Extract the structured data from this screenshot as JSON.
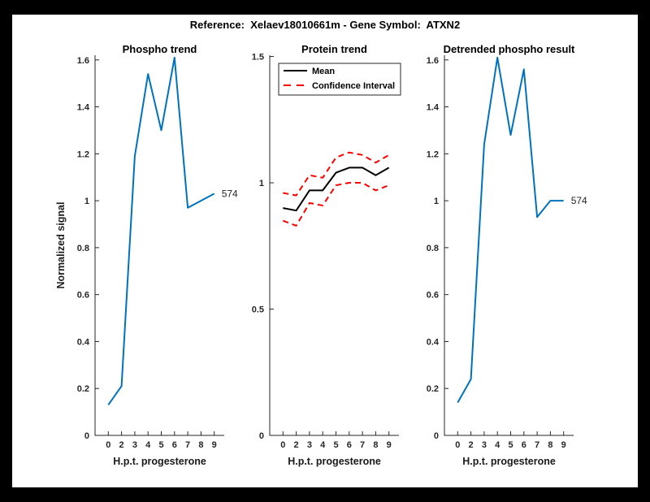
{
  "window": {
    "background": "#000000",
    "canvas_background": "#ffffff"
  },
  "figure_title": "Reference:  Xelaev18010661m - Gene Symbol:  ATXN2",
  "axis_style": {
    "axis_color": "#262626",
    "tick_label_color": "#262626",
    "tick_direction": "in"
  },
  "chart_data": [
    {
      "type": "line",
      "title": "Phospho trend",
      "xlabel": "H.p.t. progesterone",
      "ylabel": "Normalized signal",
      "x": [
        0,
        2,
        3,
        4,
        5,
        6,
        7,
        8,
        9
      ],
      "x_tick_labels": [
        "0",
        "2",
        "3",
        "4",
        "5",
        "6",
        "7",
        "8",
        "9"
      ],
      "x_spacing": "equal",
      "ylim": [
        0,
        1.62
      ],
      "yticks": [
        0,
        0.2,
        0.4,
        0.6,
        0.8,
        1,
        1.2,
        1.4,
        1.6
      ],
      "grid": false,
      "series": [
        {
          "name": "phospho-trend",
          "color": "#0072BD",
          "style": "solid",
          "width": 2,
          "values": [
            0.13,
            0.21,
            1.19,
            1.54,
            1.3,
            1.61,
            0.97,
            1.0,
            1.03
          ]
        }
      ],
      "end_label": {
        "text": "574",
        "color": "#262626"
      }
    },
    {
      "type": "line",
      "title": "Protein trend",
      "xlabel": "H.p.t. progesterone",
      "ylabel": "",
      "x": [
        0,
        2,
        3,
        4,
        5,
        6,
        7,
        8,
        9
      ],
      "x_tick_labels": [
        "0",
        "2",
        "3",
        "4",
        "5",
        "6",
        "7",
        "8",
        "9"
      ],
      "x_spacing": "equal",
      "ylim": [
        0,
        1.505
      ],
      "yticks": [
        0,
        0.5,
        1,
        1.5
      ],
      "grid": false,
      "series": [
        {
          "name": "mean",
          "color": "#000000",
          "style": "solid",
          "width": 2,
          "values": [
            0.9,
            0.89,
            0.97,
            0.97,
            1.04,
            1.06,
            1.06,
            1.03,
            1.06
          ]
        },
        {
          "name": "confidence-interval-upper",
          "color": "#FF0000",
          "style": "dashed",
          "width": 2,
          "values": [
            0.96,
            0.95,
            1.03,
            1.02,
            1.1,
            1.12,
            1.11,
            1.08,
            1.11
          ]
        },
        {
          "name": "confidence-interval-lower",
          "color": "#FF0000",
          "style": "dashed",
          "width": 2,
          "values": [
            0.85,
            0.83,
            0.92,
            0.91,
            0.99,
            1.0,
            1.0,
            0.97,
            0.99
          ]
        }
      ],
      "legend": {
        "position": "top-left",
        "items": [
          {
            "label": "Mean",
            "color": "#000000",
            "style": "solid"
          },
          {
            "label": "Confidence Interval",
            "color": "#FF0000",
            "style": "dashed"
          }
        ]
      }
    },
    {
      "type": "line",
      "title": "Detrended phospho result",
      "xlabel": "H.p.t. progesterone",
      "ylabel": "",
      "x": [
        0,
        2,
        3,
        4,
        5,
        6,
        7,
        8,
        9
      ],
      "x_tick_labels": [
        "0",
        "2",
        "3",
        "4",
        "5",
        "6",
        "7",
        "8",
        "9"
      ],
      "x_spacing": "equal",
      "ylim": [
        0,
        1.62
      ],
      "yticks": [
        0,
        0.2,
        0.4,
        0.6,
        0.8,
        1,
        1.2,
        1.4,
        1.6
      ],
      "grid": false,
      "series": [
        {
          "name": "detrended-phospho",
          "color": "#0072BD",
          "style": "solid",
          "width": 2,
          "values": [
            0.14,
            0.24,
            1.24,
            1.61,
            1.28,
            1.56,
            0.93,
            1.0,
            1.0
          ]
        }
      ],
      "end_label": {
        "text": "574",
        "color": "#262626"
      }
    }
  ]
}
